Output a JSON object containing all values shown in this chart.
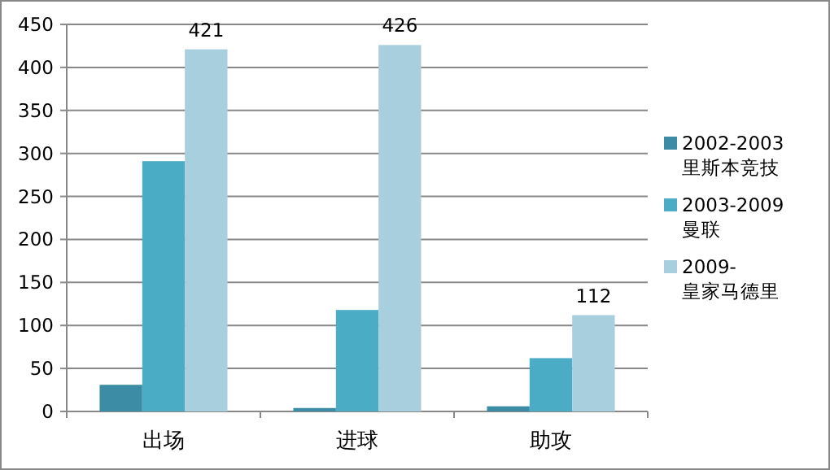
{
  "chart_data": {
    "type": "bar",
    "categories": [
      "出场",
      "进球",
      "助攻"
    ],
    "series": [
      {
        "name": "2002-2003 里斯本竞技",
        "color": "#3b8ca4",
        "values": [
          31,
          4,
          6
        ]
      },
      {
        "name": "2003-2009 曼联",
        "color": "#4bacc6",
        "values": [
          291,
          118,
          62
        ]
      },
      {
        "name": "2009-皇家马德里",
        "color": "#a8cfdd",
        "values": [
          421,
          426,
          112
        ],
        "value_labels": [
          "421",
          "426",
          "112"
        ]
      }
    ],
    "ylim": [
      0,
      450
    ],
    "yticks": [
      0,
      50,
      100,
      150,
      200,
      250,
      300,
      350,
      400,
      450
    ],
    "grid": "y",
    "legend": "right"
  }
}
